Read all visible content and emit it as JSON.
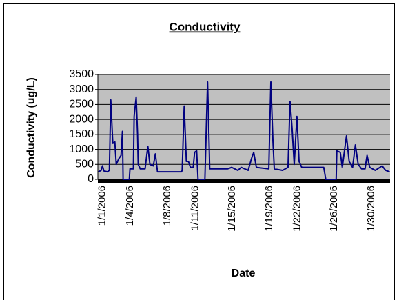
{
  "chart_data": {
    "type": "line",
    "title": "Conductivity",
    "ylabel": "Conductivity (ug/L)",
    "xlabel": "Date",
    "x": [
      0.56,
      0.85,
      1.0,
      1.15,
      1.52,
      1.74,
      1.89,
      2.11,
      2.33,
      2.48,
      2.78,
      3.0,
      3.15,
      3.22,
      3.89,
      3.96,
      4.33,
      4.41,
      4.63,
      4.78,
      4.85,
      5.07,
      5.59,
      5.89,
      6.11,
      6.48,
      6.7,
      6.93,
      9.52,
      9.59,
      9.81,
      10.04,
      10.26,
      10.48,
      10.78,
      10.93,
      11.15,
      11.3,
      12.04,
      12.19,
      12.33,
      12.56,
      14.48,
      14.93,
      15.59,
      15.96,
      16.7,
      17.07,
      17.3,
      17.59,
      18.93,
      19.15,
      19.37,
      19.52,
      20.41,
      21.0,
      21.22,
      21.44,
      21.67,
      21.96,
      22.19,
      22.48,
      24.85,
      25.07,
      26.19,
      26.26,
      26.63,
      26.85,
      27.3,
      27.59,
      27.96,
      28.26,
      28.56,
      28.93,
      29.3,
      29.52,
      29.81,
      30.41,
      31.15,
      31.52,
      31.96
    ],
    "series": [
      {
        "name": "Conductivity",
        "color": "#000080",
        "values": [
          250,
          300,
          450,
          280,
          250,
          300,
          2650,
          1200,
          1250,
          500,
          700,
          800,
          1600,
          0,
          0,
          350,
          350,
          2100,
          2750,
          1500,
          500,
          350,
          350,
          1100,
          500,
          450,
          850,
          250,
          250,
          300,
          2450,
          600,
          600,
          400,
          400,
          900,
          950,
          0,
          0,
          1700,
          3250,
          350,
          350,
          400,
          300,
          400,
          300,
          700,
          900,
          400,
          350,
          3250,
          1300,
          350,
          300,
          400,
          2600,
          1700,
          500,
          2100,
          600,
          400,
          400,
          0,
          0,
          950,
          900,
          400,
          1450,
          600,
          400,
          1150,
          500,
          350,
          350,
          800,
          400,
          300,
          450,
          300,
          250
        ]
      }
    ],
    "xlim": [
      0.5,
      32
    ],
    "xticks": [
      {
        "value": 1,
        "label": "1/1/2006"
      },
      {
        "value": 4,
        "label": "1/4/2006"
      },
      {
        "value": 8,
        "label": "1/8/2006"
      },
      {
        "value": 11,
        "label": "1/11/2006"
      },
      {
        "value": 15,
        "label": "1/15/2006"
      },
      {
        "value": 19,
        "label": "1/19/2006"
      },
      {
        "value": 22,
        "label": "1/22/2006"
      },
      {
        "value": 26,
        "label": "1/26/2006"
      },
      {
        "value": 30,
        "label": "1/30/2006"
      }
    ],
    "ylim": [
      0,
      3500
    ],
    "yticks": [
      0,
      500,
      1000,
      1500,
      2000,
      2500,
      3000,
      3500
    ],
    "grid": true
  }
}
